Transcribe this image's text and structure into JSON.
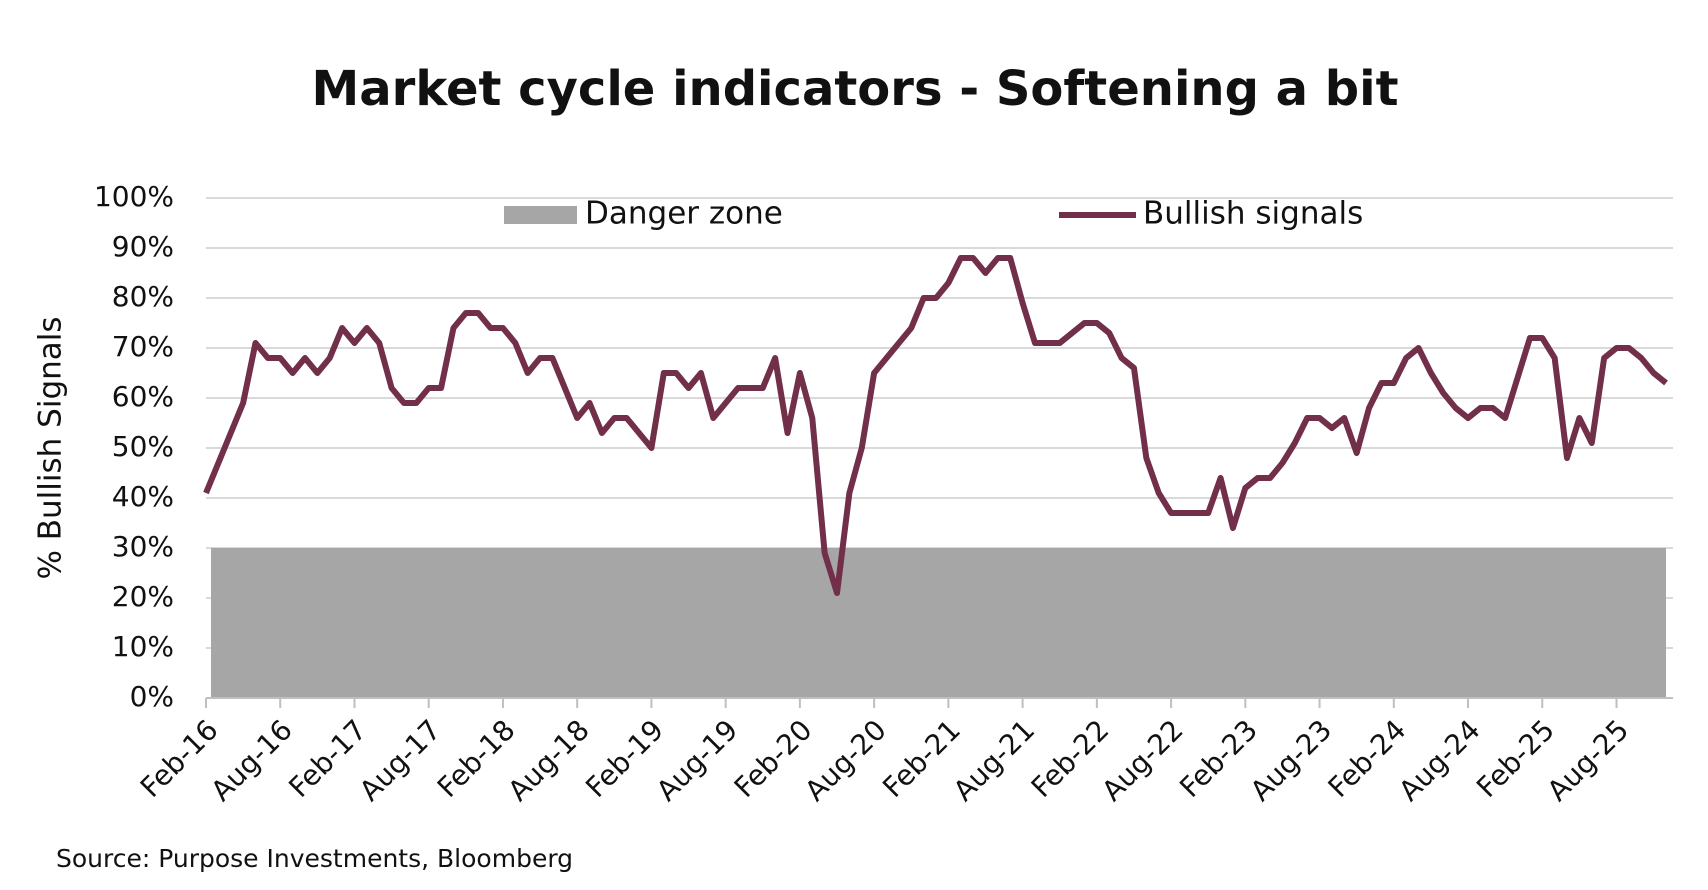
{
  "chart_data": {
    "type": "line",
    "title": "Market cycle indicators - Softening a bit",
    "ylabel": "% Bullish Signals",
    "source": "Source: Purpose Investments, Bloomberg",
    "categories": [
      "Feb-16",
      null,
      null,
      null,
      null,
      null,
      "Aug-16",
      null,
      null,
      null,
      null,
      null,
      "Feb-17",
      null,
      null,
      null,
      null,
      null,
      "Aug-17",
      null,
      null,
      null,
      null,
      null,
      "Feb-18",
      null,
      null,
      null,
      null,
      null,
      "Aug-18",
      null,
      null,
      null,
      null,
      null,
      "Feb-19",
      null,
      null,
      null,
      null,
      null,
      "Aug-19",
      null,
      null,
      null,
      null,
      null,
      "Feb-20",
      null,
      null,
      null,
      null,
      null,
      "Aug-20",
      null,
      null,
      null,
      null,
      null,
      "Feb-21",
      null,
      null,
      null,
      null,
      null,
      "Aug-21",
      null,
      null,
      null,
      null,
      null,
      "Feb-22",
      null,
      null,
      null,
      null,
      null,
      "Aug-22",
      null,
      null,
      null,
      null,
      null,
      "Feb-23",
      null,
      null,
      null,
      null,
      null,
      "Aug-23",
      null,
      null,
      null,
      null,
      null,
      "Feb-24",
      null,
      null,
      null,
      null,
      null,
      "Aug-24",
      null,
      null,
      null,
      null,
      null,
      "Feb-25",
      null,
      null,
      null,
      null,
      null,
      "Aug-25",
      null,
      null,
      null,
      null
    ],
    "series": [
      {
        "name": "Bullish signals",
        "color": "#722f4a",
        "values": [
          41,
          47,
          53,
          59,
          71,
          68,
          68,
          65,
          68,
          65,
          68,
          74,
          71,
          74,
          71,
          62,
          59,
          59,
          62,
          62,
          74,
          77,
          77,
          74,
          74,
          71,
          65,
          68,
          68,
          62,
          56,
          59,
          53,
          56,
          56,
          53,
          50,
          65,
          65,
          62,
          65,
          56,
          59,
          62,
          62,
          62,
          68,
          53,
          65,
          56,
          29,
          21,
          41,
          50,
          65,
          68,
          71,
          74,
          80,
          80,
          83,
          88,
          88,
          85,
          88,
          88,
          79,
          71,
          71,
          71,
          73,
          75,
          75,
          73,
          68,
          66,
          48,
          41,
          37,
          37,
          37,
          37,
          44,
          34,
          42,
          44,
          44,
          47,
          51,
          56,
          56,
          54,
          56,
          49,
          58,
          63,
          63,
          68,
          70,
          65,
          61,
          58,
          56,
          58,
          58,
          56,
          64,
          72,
          72,
          68,
          48,
          56,
          51,
          68,
          70,
          70,
          68,
          65,
          63
        ]
      }
    ],
    "danger_zone": {
      "name": "Danger zone",
      "color": "#a6a6a6",
      "range": [
        0,
        30
      ]
    },
    "ylim": [
      0,
      100
    ],
    "yticks": [
      {
        "value": 0,
        "label": "0%"
      },
      {
        "value": 10,
        "label": "10%"
      },
      {
        "value": 20,
        "label": "20%"
      },
      {
        "value": 30,
        "label": "30%"
      },
      {
        "value": 40,
        "label": "40%"
      },
      {
        "value": 50,
        "label": "50%"
      },
      {
        "value": 60,
        "label": "60%"
      },
      {
        "value": 70,
        "label": "70%"
      },
      {
        "value": 80,
        "label": "80%"
      },
      {
        "value": 90,
        "label": "90%"
      },
      {
        "value": 100,
        "label": "100%"
      }
    ],
    "grid": true
  }
}
